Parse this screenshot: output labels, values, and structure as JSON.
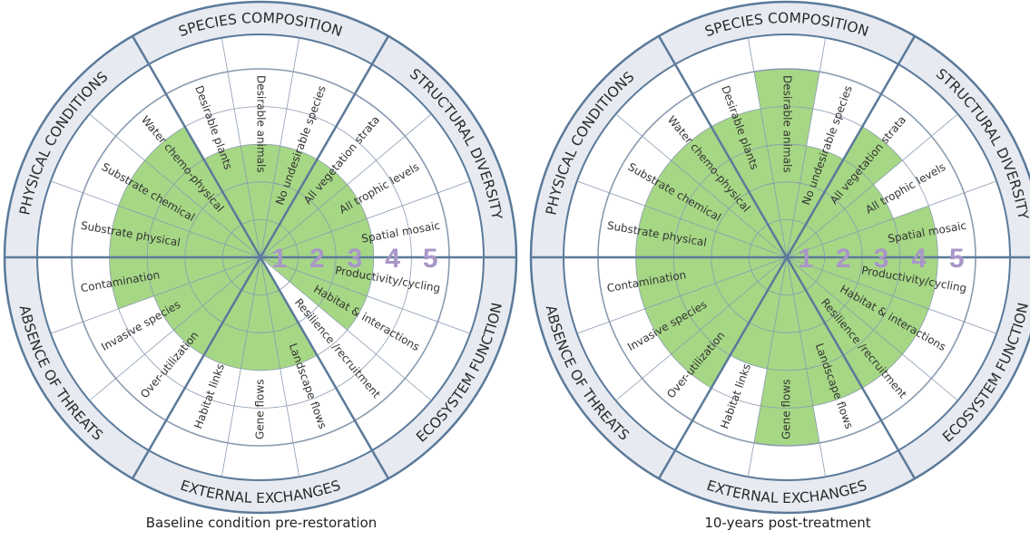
{
  "colors": {
    "fill": "#a6d785",
    "line": "#5b7a9a",
    "band": "#e7eaf1",
    "grid": "#8a9bb0",
    "scale_number": "#a996c7",
    "text": "#333333"
  },
  "scale_labels": [
    "1",
    "2",
    "3",
    "4",
    "5"
  ],
  "chart_data": [
    {
      "type": "radial-bar",
      "caption": "Baseline condition pre-restoration",
      "scale_max": 5,
      "groups": [
        {
          "name": "SPECIES COMPOSITION",
          "attributes": [
            "Desirable plants",
            "Desirable animals",
            "No undesirable species"
          ]
        },
        {
          "name": "STRUCTURAL DIVERSITY",
          "attributes": [
            "All vegetation strata",
            "All trophic levels",
            "Spatial mosaic"
          ]
        },
        {
          "name": "ECOSYSTEM FUNCTION",
          "attributes": [
            "Productivity/cycling",
            "Habitat & interactions",
            "Resilience /recruitment"
          ]
        },
        {
          "name": "EXTERNAL EXCHANGES",
          "attributes": [
            "Landscape flows",
            "Gene flows",
            "Habitat links"
          ]
        },
        {
          "name": "ABSENCE OF THREATS",
          "attributes": [
            "Over-utilization",
            "Invasive species",
            "Contamination"
          ]
        },
        {
          "name": "PHYSICAL CONDITIONS",
          "attributes": [
            "Substrate physical",
            "Substrate chemical",
            "Water chemo-physical"
          ]
        }
      ],
      "values": [
        3,
        3,
        3,
        3,
        3,
        3,
        3,
        3,
        0,
        3,
        3,
        3,
        3,
        3,
        4,
        4,
        4,
        4
      ]
    },
    {
      "type": "radial-bar",
      "caption": "10-years post-treatment",
      "scale_max": 5,
      "groups": [
        {
          "name": "SPECIES COMPOSITION",
          "attributes": [
            "Desirable plants",
            "Desirable animals",
            "No undesirable species"
          ]
        },
        {
          "name": "STRUCTURAL DIVERSITY",
          "attributes": [
            "All vegetation strata",
            "All trophic levels",
            "Spatial mosaic"
          ]
        },
        {
          "name": "ECOSYSTEM FUNCTION",
          "attributes": [
            "Productivity/cycling",
            "Habitat & interactions",
            "Resilience /recruitment"
          ]
        },
        {
          "name": "EXTERNAL EXCHANGES",
          "attributes": [
            "Landscape flows",
            "Gene flows",
            "Habitat links"
          ]
        },
        {
          "name": "ABSENCE OF THREATS",
          "attributes": [
            "Over-utilization",
            "Invasive species",
            "Contamination"
          ]
        },
        {
          "name": "PHYSICAL CONDITIONS",
          "attributes": [
            "Substrate physical",
            "Substrate chemical",
            "Water chemo-physical"
          ]
        }
      ],
      "values": [
        4,
        5,
        3,
        4,
        3,
        4,
        4,
        4,
        4,
        4,
        5,
        3,
        4,
        4,
        4,
        4,
        4,
        4
      ]
    }
  ]
}
